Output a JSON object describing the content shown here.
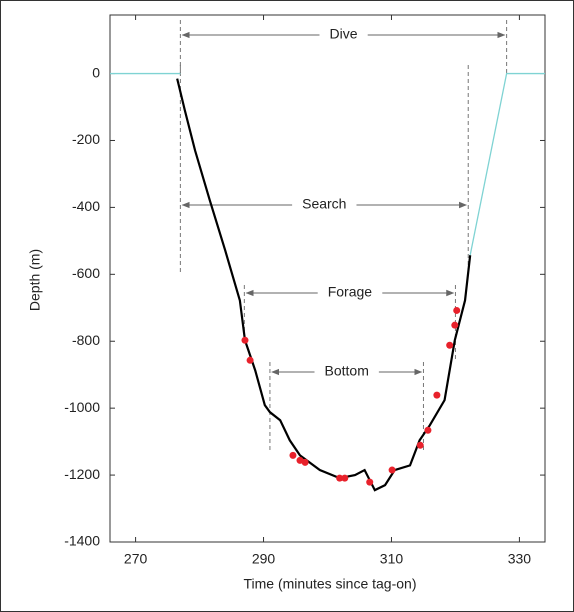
{
  "chart_data": {
    "type": "line",
    "xlabel": "Time (minutes since tag-on)",
    "ylabel": "Depth (m)",
    "xlim": [
      266,
      334
    ],
    "ylim": [
      -1400,
      175
    ],
    "xticks": [
      270,
      290,
      310,
      330
    ],
    "yticks": [
      0,
      -200,
      -400,
      -600,
      -800,
      -1000,
      -1200,
      -1400
    ],
    "series": [
      {
        "style": "line",
        "color": "#7fd3d3",
        "x": [
          266,
          277
        ],
        "values": [
          0,
          0
        ]
      },
      {
        "style": "line",
        "color": "#7fd3d3",
        "x": [
          322.3,
          328,
          334
        ],
        "values": [
          -543,
          0,
          0
        ]
      },
      {
        "style": "line",
        "color": "#000000",
        "x": [
          276.5,
          277.7,
          279.3,
          281.6,
          284.0,
          286.3,
          287.1,
          288.7,
          290.2,
          291.0,
          292.6,
          294.1,
          295.7,
          298.8,
          301.9,
          304.3,
          305.8,
          307.4,
          309.0,
          310.5,
          312.9,
          314.4,
          316.0,
          318.3,
          319.9,
          321.5,
          322.3
        ],
        "values": [
          -15,
          -110,
          -230,
          -379,
          -528,
          -678,
          -797,
          -887,
          -991,
          -1012,
          -1036,
          -1096,
          -1141,
          -1185,
          -1209,
          -1200,
          -1185,
          -1245,
          -1230,
          -1185,
          -1171,
          -1096,
          -1051,
          -976,
          -797,
          -678,
          -543
        ]
      },
      {
        "style": "markers",
        "color": "#e8212b",
        "x": [
          287.1,
          287.9,
          294.6,
          295.7,
          296.5,
          301.9,
          302.7,
          306.6,
          310.1,
          314.5,
          315.7,
          317.1,
          319.1,
          319.9,
          320.2
        ],
        "values": [
          -797,
          -857,
          -1141,
          -1156,
          -1162,
          -1209,
          -1209,
          -1221,
          -1185,
          -1111,
          -1066,
          -961,
          -812,
          -752,
          -708
        ]
      }
    ],
    "annotations": [
      {
        "text": "Dive",
        "span": [
          277,
          328
        ]
      },
      {
        "text": "Search",
        "span": [
          277,
          322
        ]
      },
      {
        "text": "Forage",
        "span": [
          287,
          320
        ]
      },
      {
        "text": "Bottom",
        "span": [
          291,
          315
        ]
      }
    ]
  }
}
